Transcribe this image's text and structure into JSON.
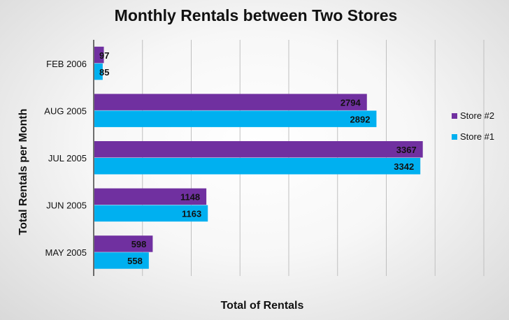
{
  "colors": {
    "store2": "#7030a0",
    "store1": "#00b0f0",
    "grid": "#bfbfbf",
    "axis": "#404040"
  },
  "chart_data": {
    "type": "bar",
    "orientation": "horizontal",
    "title": "Monthly Rentals between Two Stores",
    "xlabel": "Total of Rentals",
    "ylabel": "Total Rentals per Month",
    "categories": [
      "FEB 2006",
      "AUG 2005",
      "JUL 2005",
      "JUN 2005",
      "MAY 2005"
    ],
    "series": [
      {
        "name": "Store #2",
        "color": "#7030a0",
        "values": [
          97,
          2794,
          3367,
          1148,
          598
        ]
      },
      {
        "name": "Store #1",
        "color": "#00b0f0",
        "values": [
          85,
          2892,
          3342,
          1163,
          558
        ]
      }
    ],
    "xlim": [
      0,
      4000
    ],
    "x_tick_labels_shown": false,
    "grid": "vertical",
    "legend_position": "right"
  }
}
